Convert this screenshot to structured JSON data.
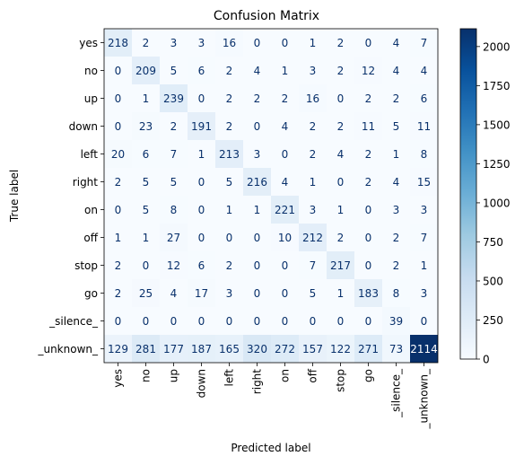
{
  "chart_data": {
    "type": "heatmap",
    "title": "Confusion Matrix",
    "xlabel": "Predicted label",
    "ylabel": "True label",
    "labels": [
      "yes",
      "no",
      "up",
      "down",
      "left",
      "right",
      "on",
      "off",
      "stop",
      "go",
      "_silence_",
      "_unknown_"
    ],
    "matrix": [
      [
        218,
        2,
        3,
        3,
        16,
        0,
        0,
        1,
        2,
        0,
        4,
        7
      ],
      [
        0,
        209,
        5,
        6,
        2,
        4,
        1,
        3,
        2,
        12,
        4,
        4
      ],
      [
        0,
        1,
        239,
        0,
        2,
        2,
        2,
        16,
        0,
        2,
        2,
        6
      ],
      [
        0,
        23,
        2,
        191,
        2,
        0,
        4,
        2,
        2,
        11,
        5,
        11
      ],
      [
        20,
        6,
        7,
        1,
        213,
        3,
        0,
        2,
        4,
        2,
        1,
        8
      ],
      [
        2,
        5,
        5,
        0,
        5,
        216,
        4,
        1,
        0,
        2,
        4,
        15
      ],
      [
        0,
        5,
        8,
        0,
        1,
        1,
        221,
        3,
        1,
        0,
        3,
        3
      ],
      [
        1,
        1,
        27,
        0,
        0,
        0,
        10,
        212,
        2,
        0,
        2,
        7
      ],
      [
        2,
        0,
        12,
        6,
        2,
        0,
        0,
        7,
        217,
        0,
        2,
        1
      ],
      [
        2,
        25,
        4,
        17,
        3,
        0,
        0,
        5,
        1,
        183,
        8,
        3
      ],
      [
        0,
        0,
        0,
        0,
        0,
        0,
        0,
        0,
        0,
        0,
        39,
        0
      ],
      [
        129,
        281,
        177,
        187,
        165,
        320,
        272,
        157,
        122,
        271,
        73,
        2114
      ]
    ],
    "colormap": "Blues",
    "colorbar": {
      "range": [
        0,
        2114
      ],
      "ticks": [
        "0",
        "250",
        "500",
        "750",
        "1000",
        "1250",
        "1500",
        "1750",
        "2000"
      ]
    }
  }
}
